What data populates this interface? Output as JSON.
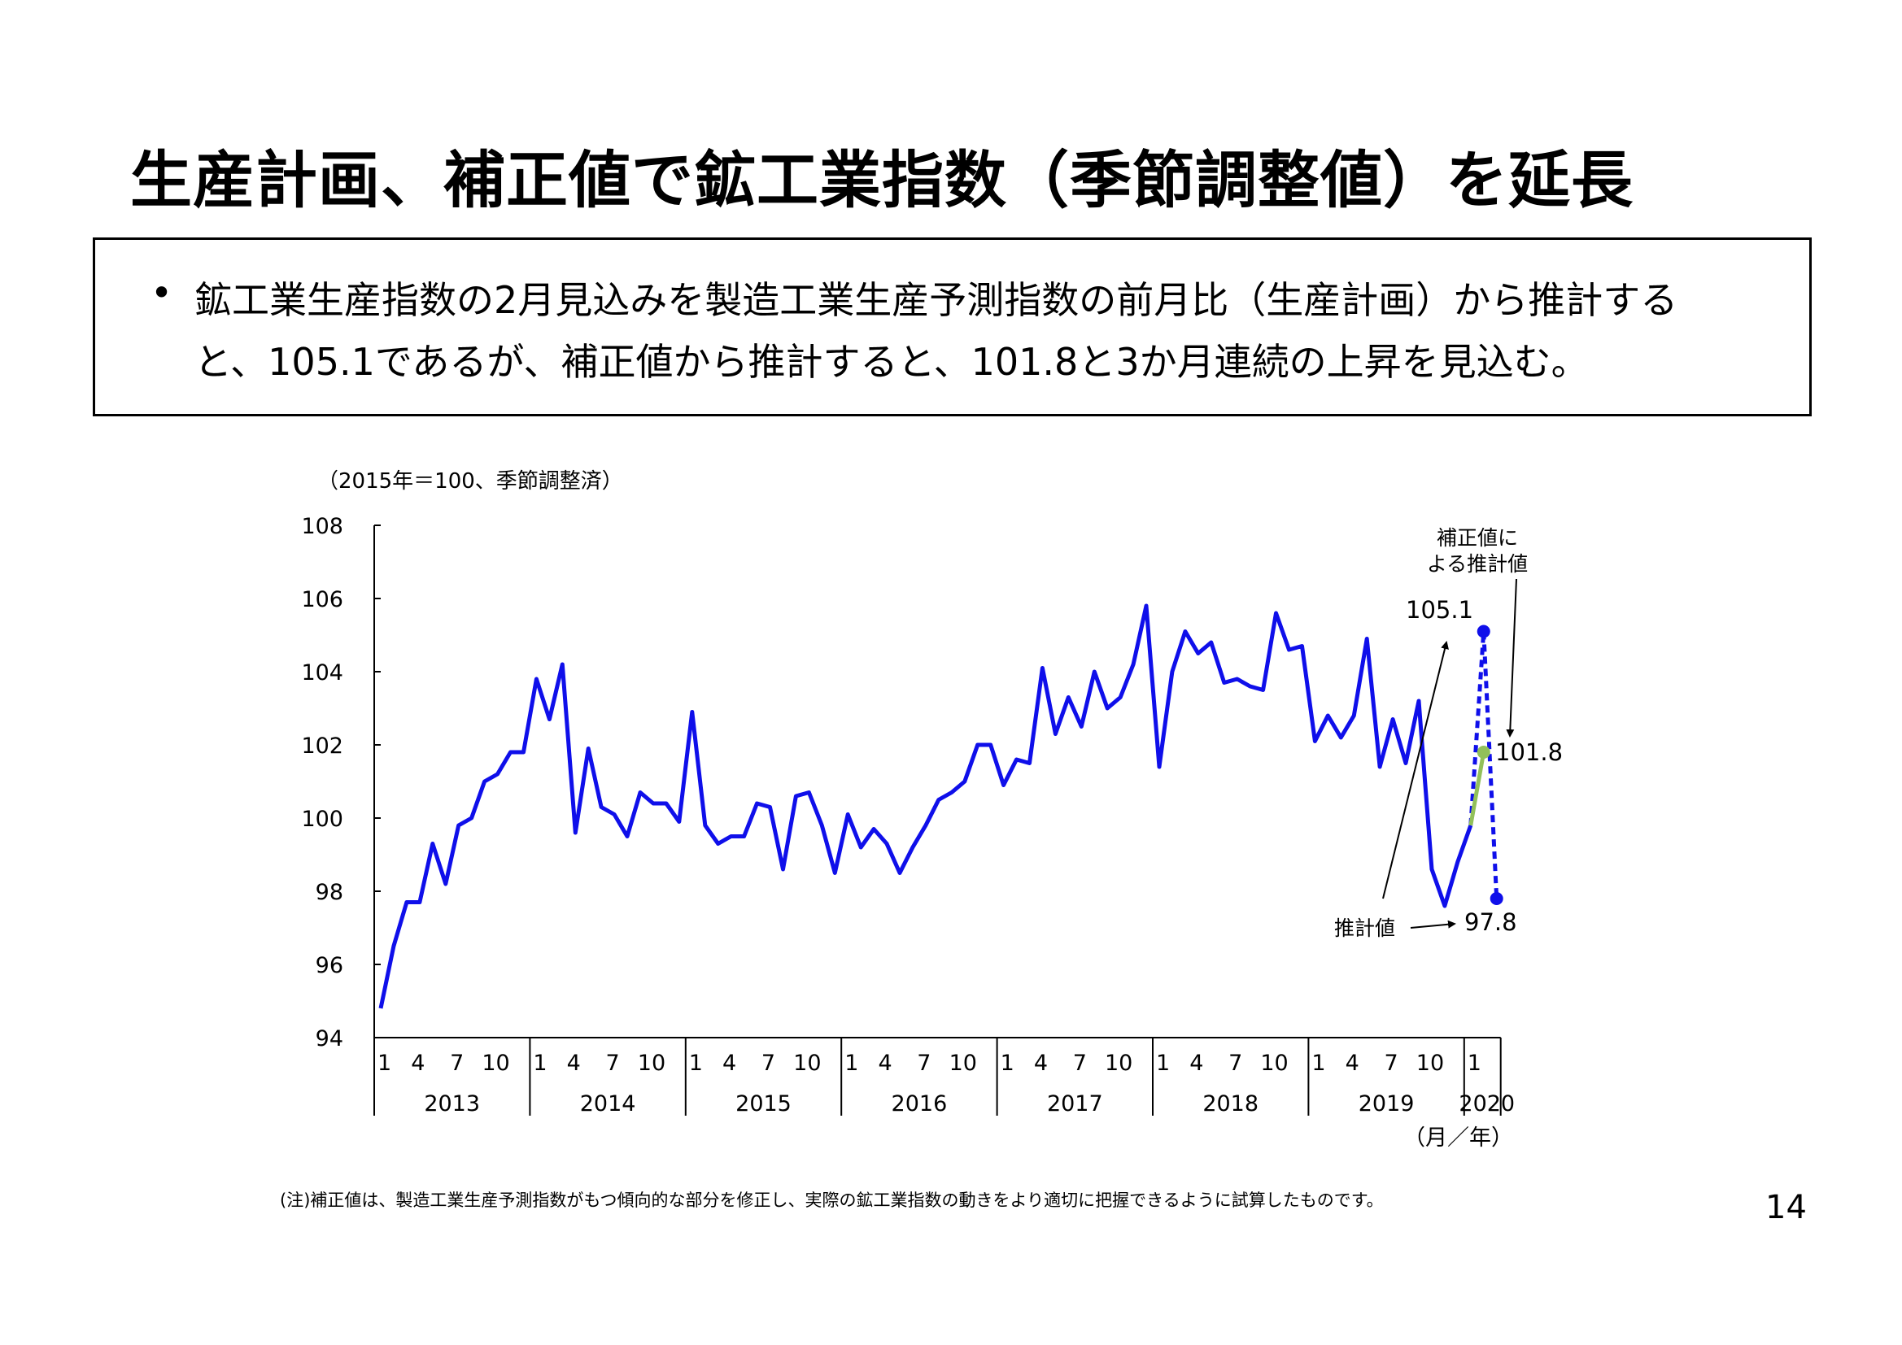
{
  "title": "生産計画、補正値で鉱工業指数（季節調整値）を延長",
  "summary": {
    "line1": "鉱工業生産指数の2月見込みを製造工業生産予測指数の前月比（生産計画）から推計する",
    "line2": "と、105.1であるが、補正値から推計すると、101.8と3か月連続の上昇を見込む。"
  },
  "footnote": "(注)補正値は、製造工業生産予測指数がもつ傾向的な部分を修正し、実際の鉱工業指数の動きをより適切に把握できるように試算したものです。",
  "page_number": "14",
  "colors": {
    "actual": "#0f0fea",
    "corrected": "#92c05a",
    "projection": "#0f0fea"
  },
  "chart_data": {
    "type": "line",
    "unit_label": "（2015年＝100、季節調整済）",
    "x_axis_label": "（月／年）",
    "ylim": [
      94,
      108
    ],
    "yticks": [
      "94",
      "96",
      "98",
      "100",
      "102",
      "104",
      "106",
      "108"
    ],
    "year_labels": [
      "2013",
      "2014",
      "2015",
      "2016",
      "2017",
      "2018",
      "2019",
      "2020"
    ],
    "month_tick_labels": [
      "1",
      "4",
      "7",
      "10"
    ],
    "final_month_tick_label": "1",
    "series": [
      {
        "style": "solid",
        "start": "2013-01",
        "values": [
          94.8,
          96.5,
          97.7,
          97.7,
          99.3,
          98.2,
          99.8,
          100.0,
          101.0,
          101.2,
          101.8,
          101.8,
          103.8,
          102.7,
          104.2,
          99.6,
          101.9,
          100.3,
          100.1,
          99.5,
          100.7,
          100.4,
          100.4,
          99.9,
          102.9,
          99.8,
          99.3,
          99.5,
          99.5,
          100.4,
          100.3,
          98.6,
          100.6,
          100.7,
          99.8,
          98.5,
          100.1,
          99.2,
          99.7,
          99.3,
          98.5,
          99.2,
          99.8,
          100.5,
          100.7,
          101.0,
          102.0,
          102.0,
          100.9,
          101.6,
          101.5,
          104.1,
          102.3,
          103.3,
          102.5,
          104.0,
          103.0,
          103.3,
          104.2,
          105.8,
          101.4,
          104.0,
          105.1,
          104.5,
          104.8,
          103.7,
          103.8,
          103.6,
          103.5,
          105.6,
          104.6,
          104.7,
          102.1,
          102.8,
          102.2,
          102.8,
          104.9,
          101.4,
          102.7,
          101.5,
          103.2,
          98.6,
          97.6,
          98.8,
          99.8
        ]
      },
      {
        "style": "dashed-projection",
        "x": [
          "2020-01",
          "2020-02",
          "2020-03"
        ],
        "values": [
          99.8,
          105.1,
          97.8
        ]
      },
      {
        "style": "corrected",
        "x": [
          "2020-01",
          "2020-02"
        ],
        "values": [
          99.8,
          101.8
        ]
      }
    ],
    "annotations": {
      "planned_value": "105.1",
      "corrected_value": "101.8",
      "march_value": "97.8",
      "corrected_caption_line1": "補正値に",
      "corrected_caption_line2": "よる推計値",
      "estimate_caption": "推計値"
    }
  }
}
